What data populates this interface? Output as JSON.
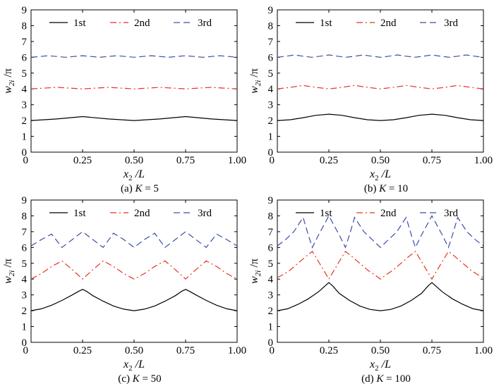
{
  "figure": {
    "panels": [
      {
        "caption": {
          "prefix": "(a) ",
          "var": "K",
          "suffix": " = 5"
        },
        "xlabel": {
          "var": "x",
          "sub": "2",
          "suffix": " /L"
        },
        "ylabel": {
          "var": "w",
          "sub": "2i",
          "suffix": " /π"
        }
      },
      {
        "caption": {
          "prefix": "(b) ",
          "var": "K",
          "suffix": " = 10"
        },
        "xlabel": {
          "var": "x",
          "sub": "2",
          "suffix": " /L"
        },
        "ylabel": {
          "var": "w",
          "sub": "2i",
          "suffix": " /π"
        }
      },
      {
        "caption": {
          "prefix": "(c) ",
          "var": "K",
          "suffix": " = 50"
        },
        "xlabel": {
          "var": "x",
          "sub": "2",
          "suffix": " /L"
        },
        "ylabel": {
          "var": "w",
          "sub": "2i",
          "suffix": " /π"
        }
      },
      {
        "caption": {
          "prefix": "(d) ",
          "var": "K",
          "suffix": " = 100"
        },
        "xlabel": {
          "var": "x",
          "sub": "2",
          "suffix": " /L"
        },
        "ylabel": {
          "var": "w",
          "sub": "2i",
          "suffix": " /π"
        }
      }
    ]
  },
  "chart_data": [
    {
      "type": "line",
      "xlim": [
        0,
        1
      ],
      "ylim": [
        0,
        9
      ],
      "xticks": [
        "0",
        "0.25",
        "0.50",
        "0.75",
        "1.00"
      ],
      "yticks": [
        "0",
        "1",
        "2",
        "3",
        "4",
        "5",
        "6",
        "7",
        "8",
        "9"
      ],
      "legend_position": "top",
      "series": [
        {
          "name": "1st",
          "color": "#000000",
          "dash": "solid",
          "x": [
            0,
            0.125,
            0.25,
            0.375,
            0.5,
            0.625,
            0.75,
            0.875,
            1.0
          ],
          "y": [
            2.0,
            2.1,
            2.25,
            2.1,
            2.0,
            2.1,
            2.25,
            2.1,
            2.0
          ]
        },
        {
          "name": "2nd",
          "color": "#e8321e",
          "dash": "dashdot",
          "x": [
            0,
            0.0625,
            0.125,
            0.1875,
            0.25,
            0.3125,
            0.375,
            0.4375,
            0.5,
            0.5625,
            0.625,
            0.6875,
            0.75,
            0.8125,
            0.875,
            0.9375,
            1.0
          ],
          "y": [
            4.0,
            4.05,
            4.1,
            4.05,
            4.0,
            4.05,
            4.1,
            4.05,
            4.0,
            4.05,
            4.1,
            4.05,
            4.0,
            4.05,
            4.1,
            4.05,
            4.0
          ]
        },
        {
          "name": "3rd",
          "color": "#3b4ca8",
          "dash": "dashed",
          "x": [
            0,
            0.0417,
            0.0833,
            0.125,
            0.1667,
            0.2083,
            0.25,
            0.2917,
            0.3333,
            0.375,
            0.4167,
            0.4583,
            0.5,
            0.5417,
            0.5833,
            0.625,
            0.6667,
            0.7083,
            0.75,
            0.7917,
            0.8333,
            0.875,
            0.9167,
            0.9583,
            1.0
          ],
          "y": [
            6.0,
            6.05,
            6.1,
            6.05,
            6.0,
            6.05,
            6.1,
            6.05,
            6.0,
            6.05,
            6.1,
            6.05,
            6.0,
            6.05,
            6.1,
            6.05,
            6.0,
            6.05,
            6.1,
            6.05,
            6.0,
            6.05,
            6.1,
            6.05,
            6.0
          ]
        }
      ]
    },
    {
      "type": "line",
      "xlim": [
        0,
        1
      ],
      "ylim": [
        0,
        9
      ],
      "xticks": [
        "0",
        "0.25",
        "0.50",
        "0.75",
        "1.00"
      ],
      "yticks": [
        "0",
        "1",
        "2",
        "3",
        "4",
        "5",
        "6",
        "7",
        "8",
        "9"
      ],
      "legend_position": "top",
      "series": [
        {
          "name": "1st",
          "color": "#000000",
          "dash": "solid",
          "x": [
            0,
            0.0625,
            0.125,
            0.1875,
            0.25,
            0.3125,
            0.375,
            0.4375,
            0.5,
            0.5625,
            0.625,
            0.6875,
            0.75,
            0.8125,
            0.875,
            0.9375,
            1.0
          ],
          "y": [
            2.0,
            2.05,
            2.18,
            2.33,
            2.4,
            2.33,
            2.18,
            2.05,
            2.0,
            2.05,
            2.18,
            2.33,
            2.4,
            2.33,
            2.18,
            2.05,
            2.0
          ]
        },
        {
          "name": "2nd",
          "color": "#e8321e",
          "dash": "dashdot",
          "x": [
            0,
            0.0625,
            0.125,
            0.1875,
            0.25,
            0.3125,
            0.375,
            0.4375,
            0.5,
            0.5625,
            0.625,
            0.6875,
            0.75,
            0.8125,
            0.875,
            0.9375,
            1.0
          ],
          "y": [
            4.0,
            4.1,
            4.22,
            4.1,
            4.0,
            4.1,
            4.22,
            4.1,
            4.0,
            4.1,
            4.22,
            4.1,
            4.0,
            4.1,
            4.22,
            4.1,
            4.0
          ]
        },
        {
          "name": "3rd",
          "color": "#3b4ca8",
          "dash": "dashed",
          "x": [
            0,
            0.0417,
            0.0833,
            0.125,
            0.1667,
            0.2083,
            0.25,
            0.2917,
            0.3333,
            0.375,
            0.4167,
            0.4583,
            0.5,
            0.5417,
            0.5833,
            0.625,
            0.6667,
            0.7083,
            0.75,
            0.7917,
            0.8333,
            0.875,
            0.9167,
            0.9583,
            1.0
          ],
          "y": [
            6.0,
            6.07,
            6.15,
            6.07,
            6.0,
            6.07,
            6.15,
            6.07,
            6.0,
            6.07,
            6.15,
            6.07,
            6.0,
            6.07,
            6.15,
            6.07,
            6.0,
            6.07,
            6.15,
            6.07,
            6.0,
            6.07,
            6.15,
            6.07,
            6.0
          ]
        }
      ]
    },
    {
      "type": "line",
      "xlim": [
        0,
        1
      ],
      "ylim": [
        0,
        9
      ],
      "xticks": [
        "0",
        "0.25",
        "0.50",
        "0.75",
        "1.00"
      ],
      "yticks": [
        "0",
        "1",
        "2",
        "3",
        "4",
        "5",
        "6",
        "7",
        "8",
        "9"
      ],
      "legend_position": "top",
      "series": [
        {
          "name": "1st",
          "color": "#000000",
          "dash": "solid",
          "x": [
            0,
            0.05,
            0.1,
            0.15,
            0.2,
            0.23,
            0.25,
            0.27,
            0.3,
            0.35,
            0.4,
            0.45,
            0.5,
            0.55,
            0.6,
            0.65,
            0.7,
            0.73,
            0.75,
            0.77,
            0.8,
            0.85,
            0.9,
            0.95,
            1.0
          ],
          "y": [
            2.0,
            2.12,
            2.35,
            2.65,
            3.0,
            3.22,
            3.35,
            3.22,
            2.95,
            2.6,
            2.3,
            2.1,
            2.0,
            2.1,
            2.3,
            2.6,
            2.95,
            3.22,
            3.35,
            3.22,
            3.0,
            2.65,
            2.35,
            2.12,
            2.0
          ]
        },
        {
          "name": "2nd",
          "color": "#e8321e",
          "dash": "dashdot",
          "x": [
            0,
            0.05,
            0.1,
            0.15,
            0.2,
            0.25,
            0.3,
            0.35,
            0.4,
            0.45,
            0.5,
            0.55,
            0.6,
            0.65,
            0.7,
            0.75,
            0.8,
            0.85,
            0.9,
            0.95,
            1.0
          ],
          "y": [
            4.0,
            4.35,
            4.8,
            5.15,
            4.6,
            4.0,
            4.6,
            5.15,
            4.8,
            4.35,
            4.0,
            4.35,
            4.8,
            5.15,
            4.6,
            4.0,
            4.6,
            5.15,
            4.8,
            4.35,
            4.0
          ]
        },
        {
          "name": "3rd",
          "color": "#3b4ca8",
          "dash": "dashed",
          "x": [
            0,
            0.05,
            0.1,
            0.15,
            0.2,
            0.25,
            0.3,
            0.35,
            0.4,
            0.45,
            0.5,
            0.55,
            0.6,
            0.65,
            0.7,
            0.75,
            0.8,
            0.85,
            0.9,
            0.95,
            1.0
          ],
          "y": [
            6.1,
            6.5,
            6.85,
            6.0,
            6.5,
            7.0,
            6.5,
            6.0,
            6.9,
            6.5,
            6.0,
            6.5,
            6.9,
            6.0,
            6.5,
            7.0,
            6.5,
            6.0,
            6.85,
            6.5,
            6.1
          ]
        }
      ]
    },
    {
      "type": "line",
      "xlim": [
        0,
        1
      ],
      "ylim": [
        0,
        9
      ],
      "xticks": [
        "0",
        "0.25",
        "0.50",
        "0.75",
        "1.00"
      ],
      "yticks": [
        "0",
        "1",
        "2",
        "3",
        "4",
        "5",
        "6",
        "7",
        "8",
        "9"
      ],
      "legend_position": "top",
      "series": [
        {
          "name": "1st",
          "color": "#000000",
          "dash": "solid",
          "x": [
            0,
            0.05,
            0.1,
            0.15,
            0.2,
            0.23,
            0.25,
            0.27,
            0.3,
            0.35,
            0.4,
            0.45,
            0.5,
            0.55,
            0.6,
            0.65,
            0.7,
            0.73,
            0.75,
            0.77,
            0.8,
            0.85,
            0.9,
            0.95,
            1.0
          ],
          "y": [
            2.0,
            2.12,
            2.4,
            2.75,
            3.2,
            3.55,
            3.78,
            3.55,
            3.1,
            2.65,
            2.3,
            2.08,
            2.0,
            2.08,
            2.3,
            2.65,
            3.1,
            3.55,
            3.78,
            3.55,
            3.2,
            2.75,
            2.4,
            2.12,
            2.0
          ]
        },
        {
          "name": "2nd",
          "color": "#e8321e",
          "dash": "dashdot",
          "x": [
            0,
            0.03,
            0.06,
            0.1,
            0.14,
            0.17,
            0.2,
            0.25,
            0.3,
            0.33,
            0.36,
            0.4,
            0.44,
            0.47,
            0.5,
            0.53,
            0.56,
            0.6,
            0.64,
            0.67,
            0.7,
            0.75,
            0.8,
            0.83,
            0.86,
            0.9,
            0.94,
            0.97,
            1.0
          ],
          "y": [
            4.1,
            4.3,
            4.55,
            5.0,
            5.45,
            5.75,
            5.1,
            4.0,
            5.1,
            5.75,
            5.45,
            5.0,
            4.55,
            4.3,
            4.0,
            4.3,
            4.55,
            5.0,
            5.45,
            5.75,
            5.1,
            4.0,
            5.1,
            5.75,
            5.45,
            5.0,
            4.55,
            4.3,
            4.1
          ]
        },
        {
          "name": "3rd",
          "color": "#3b4ca8",
          "dash": "dashed",
          "x": [
            0,
            0.04,
            0.08,
            0.125,
            0.15,
            0.17,
            0.2,
            0.25,
            0.3,
            0.33,
            0.35,
            0.375,
            0.42,
            0.46,
            0.5,
            0.54,
            0.58,
            0.625,
            0.65,
            0.67,
            0.7,
            0.75,
            0.8,
            0.83,
            0.85,
            0.875,
            0.92,
            0.96,
            1.0
          ],
          "y": [
            6.1,
            6.5,
            7.0,
            7.9,
            6.8,
            6.0,
            6.8,
            8.0,
            6.8,
            6.0,
            6.8,
            7.9,
            7.0,
            6.5,
            6.0,
            6.5,
            7.0,
            7.9,
            6.8,
            6.0,
            6.8,
            8.0,
            6.8,
            6.0,
            6.8,
            7.9,
            7.0,
            6.5,
            6.1
          ]
        }
      ]
    }
  ]
}
